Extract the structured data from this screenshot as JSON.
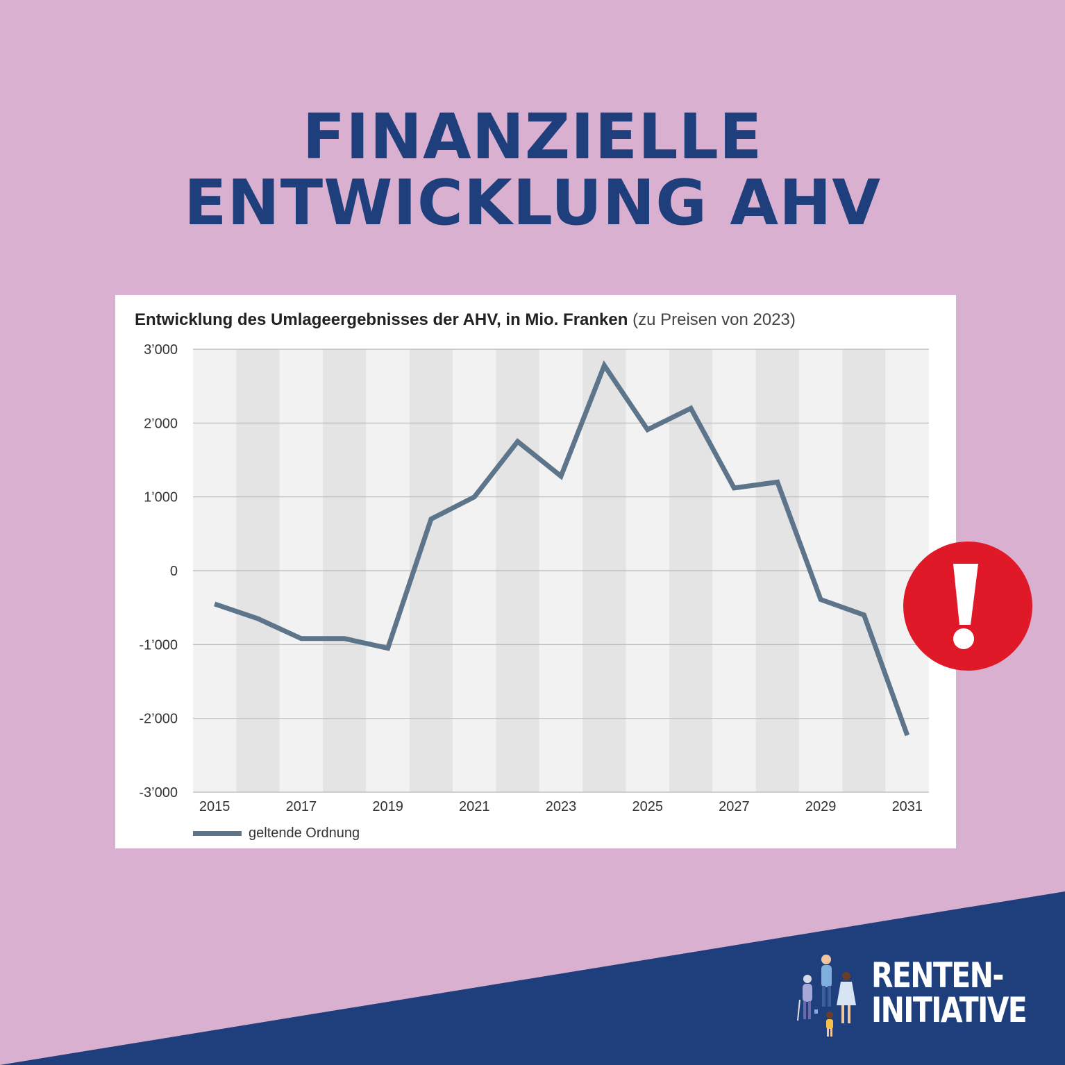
{
  "headline": {
    "line1": "FINANZIELLE",
    "line2": "ENTWICKLUNG AHV"
  },
  "colors": {
    "background": "#dab0d0",
    "headline": "#1e3f7c",
    "banner": "#1e3f7c",
    "line": "#5d758a",
    "alert": "#e01928",
    "band_dark": "#e4e4e4",
    "band_light": "#f2f2f2"
  },
  "chart_data": {
    "type": "line",
    "title": "Entwicklung des Umlageergebnisses der AHV, in Mio. Franken",
    "subtitle": "(zu Preisen von 2023)",
    "xlabel": "",
    "ylabel": "",
    "xlim": [
      2014.5,
      2031.5
    ],
    "ylim": [
      -3000,
      3000
    ],
    "y_ticks": [
      3000,
      2000,
      1000,
      0,
      -1000,
      -2000,
      -3000
    ],
    "y_tick_labels": [
      "3’000",
      "2’000",
      "1’000",
      "0",
      "-1’000",
      "-2’000",
      "-3’000"
    ],
    "x_ticks": [
      2015,
      2017,
      2019,
      2021,
      2023,
      2025,
      2027,
      2029,
      2031
    ],
    "x_tick_labels": [
      "2015",
      "2017",
      "2019",
      "2021",
      "2023",
      "2025",
      "2027",
      "2029",
      "2031"
    ],
    "grid": true,
    "legend_position": "bottom-left",
    "series": [
      {
        "name": "geltende Ordnung",
        "color": "#5d758a",
        "x": [
          2015,
          2016,
          2017,
          2018,
          2019,
          2020,
          2021,
          2022,
          2023,
          2024,
          2025,
          2026,
          2027,
          2028,
          2029,
          2030,
          2031
        ],
        "values": [
          -450,
          -650,
          -920,
          -920,
          -1050,
          700,
          1000,
          1750,
          1280,
          2780,
          1910,
          2200,
          1120,
          1200,
          -390,
          -600,
          -2230
        ]
      }
    ]
  },
  "logo": {
    "line1": "RENTEN-",
    "line2": "INITIATIVE",
    "figures_icon": "family-figures-icon",
    "alert_icon": "exclamation-icon"
  }
}
